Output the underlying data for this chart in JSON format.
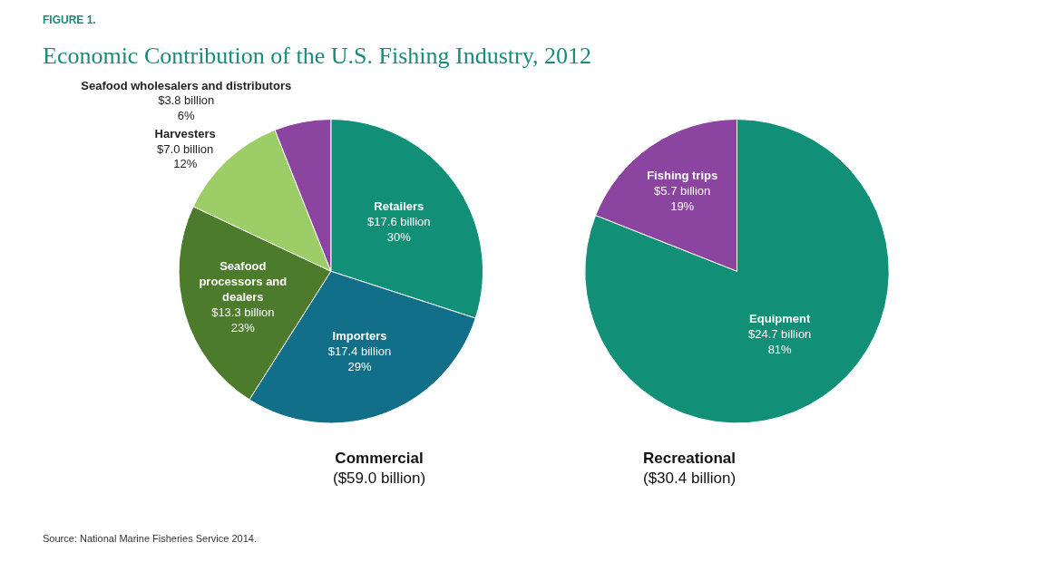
{
  "chart_data": [
    {
      "type": "pie",
      "subtitle": "FIGURE 1.",
      "title": "Economic Contribution of the U.S. Fishing Industry, 2012",
      "xlabel": "Commercial\n($59.0 billion)",
      "categories": [
        "Retailers",
        "Importers",
        "Seafood processors and dealers",
        "Harvesters",
        "Seafood wholesalers and distributors"
      ],
      "values": [
        30,
        29,
        23,
        12,
        6
      ],
      "value_labels": [
        "$17.6 billion\n30%",
        "$17.4 billion\n29%",
        "$13.3 billion\n23%",
        "$7.0 billion\n12%",
        "$3.8 billion\n6%"
      ],
      "colors": [
        "#128f77",
        "#126f89",
        "#4b7b2b",
        "#9dcd66",
        "#8b44a0"
      ],
      "annotations": [
        "Source: National Marine Fisheries Service 2014."
      ]
    },
    {
      "type": "pie",
      "xlabel": "Recreational\n($30.4 billion)",
      "categories": [
        "Equipment",
        "Fishing trips"
      ],
      "values": [
        81,
        19
      ],
      "value_labels": [
        "$24.7 billion\n81%",
        "$5.7 billion\n19%"
      ],
      "colors": [
        "#128f77",
        "#8b44a0"
      ]
    }
  ]
}
